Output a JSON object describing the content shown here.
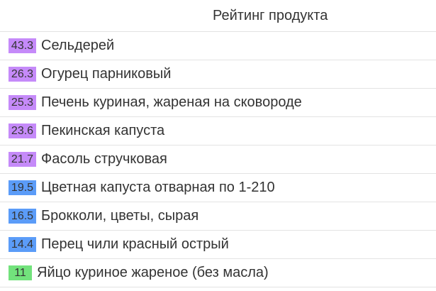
{
  "header": {
    "title": "Рейтинг продукта"
  },
  "colors": {
    "high": "#c58af9",
    "mid": "#5b9cf8",
    "low": "#72e27c"
  },
  "rows": [
    {
      "score": "43.3",
      "name": "Сельдерей",
      "level": "high"
    },
    {
      "score": "26.3",
      "name": "Огурец парниковый",
      "level": "high"
    },
    {
      "score": "25.3",
      "name": "Печень куриная, жареная на сковороде",
      "level": "high"
    },
    {
      "score": "23.6",
      "name": "Пекинская капуста",
      "level": "high"
    },
    {
      "score": "21.7",
      "name": "Фасоль стручковая",
      "level": "high"
    },
    {
      "score": "19.5",
      "name": "Цветная капуста отварная по 1-210",
      "level": "mid"
    },
    {
      "score": "16.5",
      "name": "Брокколи, цветы, сырая",
      "level": "mid"
    },
    {
      "score": "14.4",
      "name": "Перец чили красный острый",
      "level": "mid"
    },
    {
      "score": "11",
      "name": "Яйцо куриное жареное (без масла)",
      "level": "low"
    }
  ]
}
